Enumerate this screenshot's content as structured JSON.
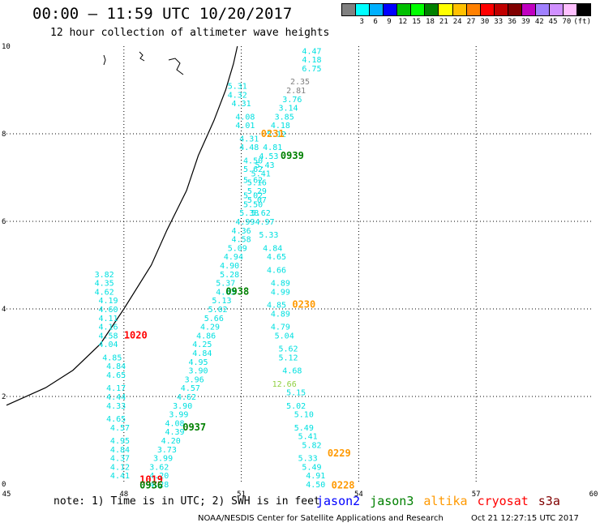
{
  "header": {
    "title": "00:00 – 11:59 UTC 10/20/2017",
    "subtitle": "12 hour collection of altimeter wave heights"
  },
  "legend": {
    "colors": [
      "#808080",
      "#00ffff",
      "#00b0ff",
      "#0000ff",
      "#00c000",
      "#00ff00",
      "#008000",
      "#ffff00",
      "#ffc000",
      "#ff8000",
      "#ff0000",
      "#c00000",
      "#800000",
      "#c000c0",
      "#a080ff",
      "#d090ff",
      "#ffc0ff",
      "#000000"
    ],
    "labels": [
      "",
      "3",
      "6",
      "9",
      "12",
      "15",
      "18",
      "21",
      "24",
      "27",
      "30",
      "33",
      "36",
      "39",
      "42",
      "45",
      "70",
      "(ft)"
    ]
  },
  "note": "note: 1) Time is in UTC; 2) SWH is in feet",
  "satellites": [
    {
      "name": "jason2",
      "color": "#0000ff"
    },
    {
      "name": "jason3",
      "color": "#008000"
    },
    {
      "name": "altika",
      "color": "#ff9900"
    },
    {
      "name": "cryosat",
      "color": "#ff0000"
    },
    {
      "name": "s3a",
      "color": "#800000"
    }
  ],
  "footer": {
    "credit": "NOAA/NESDIS Center for Satellite Applications and Research",
    "timestamp": "Oct 21 12:27:15 UTC 2017"
  },
  "chart_data": {
    "type": "scatter",
    "xlim": [
      45,
      60
    ],
    "ylim": [
      0,
      10
    ],
    "xticks": [
      "45",
      "48",
      "51",
      "54",
      "57",
      "60"
    ],
    "yticks": [
      "0",
      "2",
      "4",
      "6",
      "8",
      "10"
    ],
    "grid": true,
    "coastline": [
      [
        50.9,
        10
      ],
      [
        50.8,
        9.6
      ],
      [
        50.6,
        9.0
      ],
      [
        50.3,
        8.3
      ],
      [
        49.9,
        7.5
      ],
      [
        49.6,
        6.7
      ],
      [
        49.1,
        5.8
      ],
      [
        48.7,
        5.0
      ],
      [
        48.0,
        4.0
      ],
      [
        47.4,
        3.2
      ],
      [
        46.7,
        2.6
      ],
      [
        46.0,
        2.2
      ],
      [
        45.0,
        1.8
      ]
    ],
    "labels": [
      {
        "text": "4.47",
        "x": 52.8,
        "y": 9.9,
        "c": "#00e0e0"
      },
      {
        "text": "4.18",
        "x": 52.8,
        "y": 9.7,
        "c": "#00e0e0"
      },
      {
        "text": "6.75",
        "x": 52.8,
        "y": 9.5,
        "c": "#00e0e0"
      },
      {
        "text": "2.35",
        "x": 52.5,
        "y": 9.2,
        "c": "#808080"
      },
      {
        "text": "2.81",
        "x": 52.4,
        "y": 9.0,
        "c": "#808080"
      },
      {
        "text": "3.76",
        "x": 52.3,
        "y": 8.8,
        "c": "#00e0e0"
      },
      {
        "text": "3.14",
        "x": 52.2,
        "y": 8.6,
        "c": "#00e0e0"
      },
      {
        "text": "3.85",
        "x": 52.1,
        "y": 8.4,
        "c": "#00e0e0"
      },
      {
        "text": "4.18",
        "x": 52.0,
        "y": 8.2,
        "c": "#00e0e0"
      },
      {
        "text": "5.12",
        "x": 51.9,
        "y": 8.0,
        "c": "#00e0e0"
      },
      {
        "text": "4.81",
        "x": 51.8,
        "y": 7.7,
        "c": "#00e0e0"
      },
      {
        "text": "4.53",
        "x": 51.7,
        "y": 7.5,
        "c": "#00e0e0"
      },
      {
        "text": "5.43",
        "x": 51.6,
        "y": 7.3,
        "c": "#00e0e0"
      },
      {
        "text": "5.41",
        "x": 51.5,
        "y": 7.1,
        "c": "#00e0e0"
      },
      {
        "text": "5.16",
        "x": 51.4,
        "y": 6.9,
        "c": "#00e0e0"
      },
      {
        "text": "5.29",
        "x": 51.4,
        "y": 6.7,
        "c": "#00e0e0"
      },
      {
        "text": "5.07",
        "x": 51.4,
        "y": 6.5,
        "c": "#00e0e0"
      },
      {
        "text": "5.62",
        "x": 51.5,
        "y": 6.2,
        "c": "#00e0e0"
      },
      {
        "text": "4.97",
        "x": 51.6,
        "y": 6.0,
        "c": "#00e0e0"
      },
      {
        "text": "5.33",
        "x": 51.7,
        "y": 5.7,
        "c": "#00e0e0"
      },
      {
        "text": "4.84",
        "x": 51.8,
        "y": 5.4,
        "c": "#00e0e0"
      },
      {
        "text": "4.65",
        "x": 51.9,
        "y": 5.2,
        "c": "#00e0e0"
      },
      {
        "text": "4.66",
        "x": 51.9,
        "y": 4.9,
        "c": "#00e0e0"
      },
      {
        "text": "4.89",
        "x": 52.0,
        "y": 4.6,
        "c": "#00e0e0"
      },
      {
        "text": "4.99",
        "x": 52.0,
        "y": 4.4,
        "c": "#00e0e0"
      },
      {
        "text": "4.85",
        "x": 51.9,
        "y": 4.1,
        "c": "#00e0e0"
      },
      {
        "text": "4.89",
        "x": 52.0,
        "y": 3.9,
        "c": "#00e0e0"
      },
      {
        "text": "4.79",
        "x": 52.0,
        "y": 3.6,
        "c": "#00e0e0"
      },
      {
        "text": "5.04",
        "x": 52.1,
        "y": 3.4,
        "c": "#00e0e0"
      },
      {
        "text": "5.62",
        "x": 52.2,
        "y": 3.1,
        "c": "#00e0e0"
      },
      {
        "text": "5.12",
        "x": 52.2,
        "y": 2.9,
        "c": "#00e0e0"
      },
      {
        "text": "4.68",
        "x": 52.3,
        "y": 2.6,
        "c": "#00e0e0"
      },
      {
        "text": "12.66",
        "x": 52.1,
        "y": 2.3,
        "c": "#90d040"
      },
      {
        "text": "5.15",
        "x": 52.4,
        "y": 2.1,
        "c": "#00e0e0"
      },
      {
        "text": "5.02",
        "x": 52.4,
        "y": 1.8,
        "c": "#00e0e0"
      },
      {
        "text": "5.10",
        "x": 52.6,
        "y": 1.6,
        "c": "#00e0e0"
      },
      {
        "text": "5.49",
        "x": 52.6,
        "y": 1.3,
        "c": "#00e0e0"
      },
      {
        "text": "5.41",
        "x": 52.7,
        "y": 1.1,
        "c": "#00e0e0"
      },
      {
        "text": "5.82",
        "x": 52.8,
        "y": 0.9,
        "c": "#00e0e0"
      },
      {
        "text": "5.33",
        "x": 52.7,
        "y": 0.6,
        "c": "#00e0e0"
      },
      {
        "text": "5.49",
        "x": 52.8,
        "y": 0.4,
        "c": "#00e0e0"
      },
      {
        "text": "4.91",
        "x": 52.9,
        "y": 0.2,
        "c": "#00e0e0"
      },
      {
        "text": "4.50",
        "x": 52.9,
        "y": 0.0,
        "c": "#00e0e0"
      },
      {
        "text": "5.31",
        "x": 50.9,
        "y": 9.1,
        "c": "#00e0e0"
      },
      {
        "text": "4.32",
        "x": 50.9,
        "y": 8.9,
        "c": "#00e0e0"
      },
      {
        "text": "4.31",
        "x": 51.0,
        "y": 8.7,
        "c": "#00e0e0"
      },
      {
        "text": "4.08",
        "x": 51.1,
        "y": 8.4,
        "c": "#00e0e0"
      },
      {
        "text": "4.01",
        "x": 51.1,
        "y": 8.2,
        "c": "#00e0e0"
      },
      {
        "text": "4.31",
        "x": 51.2,
        "y": 7.9,
        "c": "#00e0e0"
      },
      {
        "text": "4.48",
        "x": 51.2,
        "y": 7.7,
        "c": "#00e0e0"
      },
      {
        "text": "4.50",
        "x": 51.3,
        "y": 7.4,
        "c": "#00e0e0"
      },
      {
        "text": "5.62",
        "x": 51.3,
        "y": 7.2,
        "c": "#00e0e0"
      },
      {
        "text": "5.62",
        "x": 51.3,
        "y": 6.95,
        "c": "#00e0e0"
      },
      {
        "text": "5.02",
        "x": 51.3,
        "y": 6.6,
        "c": "#00e0e0"
      },
      {
        "text": "5.50",
        "x": 51.3,
        "y": 6.4,
        "c": "#00e0e0"
      },
      {
        "text": "5.38",
        "x": 51.2,
        "y": 6.2,
        "c": "#00e0e0"
      },
      {
        "text": "4.99",
        "x": 51.1,
        "y": 6.0,
        "c": "#00e0e0"
      },
      {
        "text": "4.36",
        "x": 51.0,
        "y": 5.8,
        "c": "#00e0e0"
      },
      {
        "text": "4.58",
        "x": 51.0,
        "y": 5.6,
        "c": "#00e0e0"
      },
      {
        "text": "5.09",
        "x": 50.9,
        "y": 5.4,
        "c": "#00e0e0"
      },
      {
        "text": "4.94",
        "x": 50.8,
        "y": 5.2,
        "c": "#00e0e0"
      },
      {
        "text": "4.90",
        "x": 50.7,
        "y": 5.0,
        "c": "#00e0e0"
      },
      {
        "text": "5.28",
        "x": 50.7,
        "y": 4.8,
        "c": "#00e0e0"
      },
      {
        "text": "5.37",
        "x": 50.6,
        "y": 4.6,
        "c": "#00e0e0"
      },
      {
        "text": "4.63",
        "x": 50.6,
        "y": 4.4,
        "c": "#00e0e0"
      },
      {
        "text": "5.13",
        "x": 50.5,
        "y": 4.2,
        "c": "#00e0e0"
      },
      {
        "text": "5.02",
        "x": 50.4,
        "y": 4.0,
        "c": "#00e0e0"
      },
      {
        "text": "5.66",
        "x": 50.3,
        "y": 3.8,
        "c": "#00e0e0"
      },
      {
        "text": "4.29",
        "x": 50.2,
        "y": 3.6,
        "c": "#00e0e0"
      },
      {
        "text": "4.86",
        "x": 50.1,
        "y": 3.4,
        "c": "#00e0e0"
      },
      {
        "text": "4.25",
        "x": 50.0,
        "y": 3.2,
        "c": "#00e0e0"
      },
      {
        "text": "4.84",
        "x": 50.0,
        "y": 3.0,
        "c": "#00e0e0"
      },
      {
        "text": "4.95",
        "x": 49.9,
        "y": 2.8,
        "c": "#00e0e0"
      },
      {
        "text": "3.90",
        "x": 49.9,
        "y": 2.6,
        "c": "#00e0e0"
      },
      {
        "text": "3.96",
        "x": 49.8,
        "y": 2.4,
        "c": "#00e0e0"
      },
      {
        "text": "4.57",
        "x": 49.7,
        "y": 2.2,
        "c": "#00e0e0"
      },
      {
        "text": "4.62",
        "x": 49.6,
        "y": 2.0,
        "c": "#00e0e0"
      },
      {
        "text": "3.90",
        "x": 49.5,
        "y": 1.8,
        "c": "#00e0e0"
      },
      {
        "text": "3.99",
        "x": 49.4,
        "y": 1.6,
        "c": "#00e0e0"
      },
      {
        "text": "4.08",
        "x": 49.3,
        "y": 1.4,
        "c": "#00e0e0"
      },
      {
        "text": "4.39",
        "x": 49.3,
        "y": 1.2,
        "c": "#00e0e0"
      },
      {
        "text": "4.20",
        "x": 49.2,
        "y": 1.0,
        "c": "#00e0e0"
      },
      {
        "text": "3.73",
        "x": 49.1,
        "y": 0.8,
        "c": "#00e0e0"
      },
      {
        "text": "3.99",
        "x": 49.0,
        "y": 0.6,
        "c": "#00e0e0"
      },
      {
        "text": "3.62",
        "x": 48.9,
        "y": 0.4,
        "c": "#00e0e0"
      },
      {
        "text": "4.20",
        "x": 48.9,
        "y": 0.2,
        "c": "#00e0e0"
      },
      {
        "text": "4.28",
        "x": 48.9,
        "y": 0.0,
        "c": "#00e0e0"
      },
      {
        "text": "3.82",
        "x": 47.5,
        "y": 4.8,
        "c": "#00e0e0"
      },
      {
        "text": "4.35",
        "x": 47.5,
        "y": 4.6,
        "c": "#00e0e0"
      },
      {
        "text": "4.62",
        "x": 47.5,
        "y": 4.4,
        "c": "#00e0e0"
      },
      {
        "text": "4.19",
        "x": 47.6,
        "y": 4.2,
        "c": "#00e0e0"
      },
      {
        "text": "4.60",
        "x": 47.6,
        "y": 4.0,
        "c": "#00e0e0"
      },
      {
        "text": "4.11",
        "x": 47.6,
        "y": 3.8,
        "c": "#00e0e0"
      },
      {
        "text": "4.16",
        "x": 47.6,
        "y": 3.6,
        "c": "#00e0e0"
      },
      {
        "text": "4.58",
        "x": 47.6,
        "y": 3.4,
        "c": "#00e0e0"
      },
      {
        "text": "4.04",
        "x": 47.6,
        "y": 3.2,
        "c": "#00e0e0"
      },
      {
        "text": "4.85",
        "x": 47.7,
        "y": 2.9,
        "c": "#00e0e0"
      },
      {
        "text": "4.84",
        "x": 47.8,
        "y": 2.7,
        "c": "#00e0e0"
      },
      {
        "text": "4.65",
        "x": 47.8,
        "y": 2.5,
        "c": "#00e0e0"
      },
      {
        "text": "4.17",
        "x": 47.8,
        "y": 2.2,
        "c": "#00e0e0"
      },
      {
        "text": "4.44",
        "x": 47.8,
        "y": 2.0,
        "c": "#00e0e0"
      },
      {
        "text": "4.33",
        "x": 47.8,
        "y": 1.8,
        "c": "#00e0e0"
      },
      {
        "text": "4.65",
        "x": 47.8,
        "y": 1.5,
        "c": "#00e0e0"
      },
      {
        "text": "4.57",
        "x": 47.9,
        "y": 1.3,
        "c": "#00e0e0"
      },
      {
        "text": "4.95",
        "x": 47.9,
        "y": 1.0,
        "c": "#00e0e0"
      },
      {
        "text": "4.84",
        "x": 47.9,
        "y": 0.8,
        "c": "#00e0e0"
      },
      {
        "text": "4.37",
        "x": 47.9,
        "y": 0.6,
        "c": "#00e0e0"
      },
      {
        "text": "4.12",
        "x": 47.9,
        "y": 0.4,
        "c": "#00e0e0"
      },
      {
        "text": "4.41",
        "x": 47.9,
        "y": 0.2,
        "c": "#00e0e0"
      },
      {
        "text": "0231",
        "x": 51.8,
        "y": 8.0,
        "c": "#ff9900",
        "big": true
      },
      {
        "text": "0939",
        "x": 52.3,
        "y": 7.5,
        "c": "#008000",
        "big": true
      },
      {
        "text": "0938",
        "x": 50.9,
        "y": 4.4,
        "c": "#008000",
        "big": true
      },
      {
        "text": "0230",
        "x": 52.6,
        "y": 4.1,
        "c": "#ff9900",
        "big": true
      },
      {
        "text": "1020",
        "x": 48.3,
        "y": 3.4,
        "c": "#ff0000",
        "big": true
      },
      {
        "text": "0937",
        "x": 49.8,
        "y": 1.3,
        "c": "#008000",
        "big": true
      },
      {
        "text": "0229",
        "x": 53.5,
        "y": 0.7,
        "c": "#ff9900",
        "big": true
      },
      {
        "text": "1019",
        "x": 48.7,
        "y": 0.1,
        "c": "#ff0000",
        "big": true
      },
      {
        "text": "0936",
        "x": 48.7,
        "y": -0.03,
        "c": "#008000",
        "big": true
      },
      {
        "text": "0228",
        "x": 53.6,
        "y": -0.03,
        "c": "#ff9900",
        "big": true
      }
    ]
  }
}
